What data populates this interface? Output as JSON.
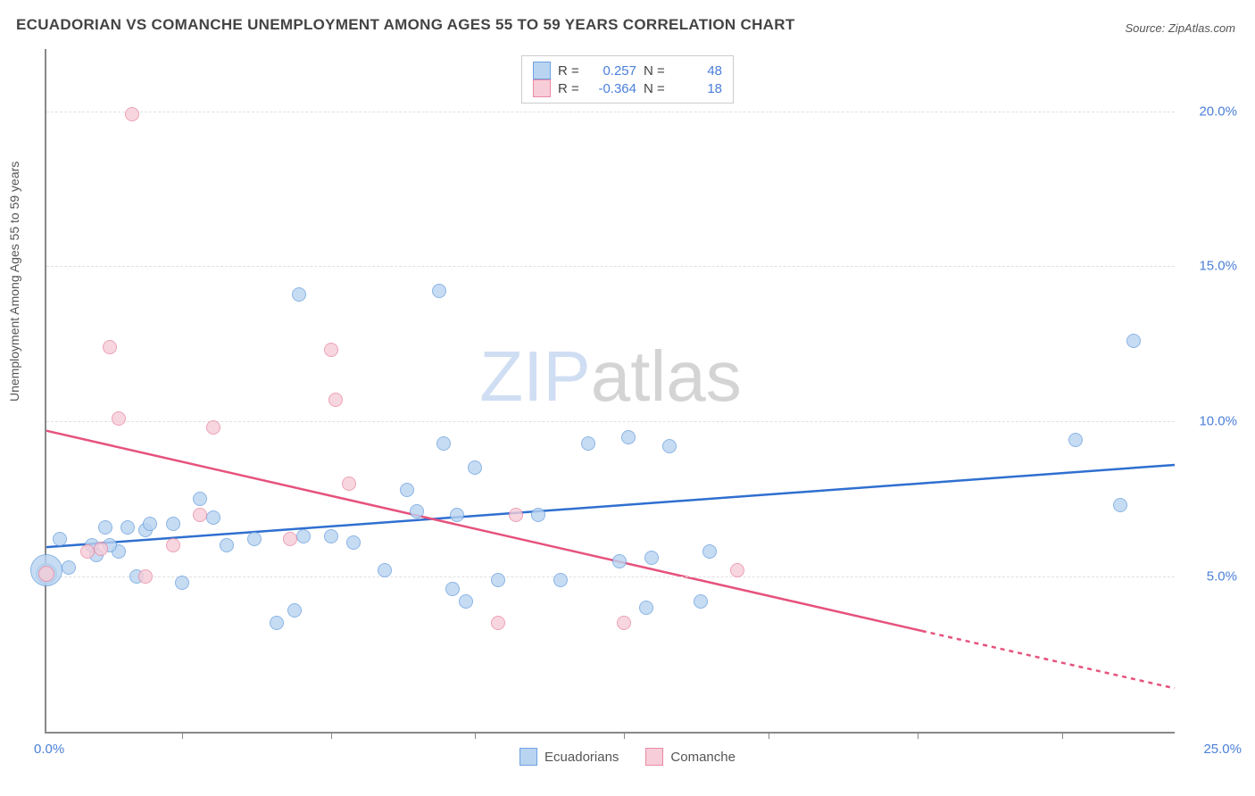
{
  "title": "ECUADORIAN VS COMANCHE UNEMPLOYMENT AMONG AGES 55 TO 59 YEARS CORRELATION CHART",
  "source": "Source: ZipAtlas.com",
  "ylabel": "Unemployment Among Ages 55 to 59 years",
  "watermark": {
    "zip": "ZIP",
    "atlas": "atlas"
  },
  "chart": {
    "type": "scatter",
    "xlim": [
      0,
      25
    ],
    "ylim": [
      0,
      22
    ],
    "xtick_positions": [
      3.0,
      6.3,
      9.5,
      12.8,
      16.0,
      19.3,
      22.5
    ],
    "x_origin_label": "0.0%",
    "x_end_label": "25.0%",
    "yticks": [
      {
        "v": 5.0,
        "label": "5.0%"
      },
      {
        "v": 10.0,
        "label": "10.0%"
      },
      {
        "v": 15.0,
        "label": "15.0%"
      },
      {
        "v": 20.0,
        "label": "20.0%"
      }
    ],
    "background_color": "#ffffff",
    "grid_color": "#e0e0e0",
    "axis_color": "#888888",
    "series": [
      {
        "name": "Ecuadorians",
        "fill": "#b9d4f1",
        "stroke": "#6ea2df",
        "line_color": "#2f6fd0",
        "R": "0.257",
        "N": "48",
        "trend": {
          "x1": 0,
          "y1": 5.95,
          "x2": 25,
          "y2": 8.6
        },
        "points": [
          {
            "x": 0.0,
            "y": 5.1,
            "r": 12
          },
          {
            "x": 0.0,
            "y": 5.2,
            "r": 18
          },
          {
            "x": 0.3,
            "y": 6.2,
            "r": 8
          },
          {
            "x": 0.5,
            "y": 5.3,
            "r": 8
          },
          {
            "x": 1.0,
            "y": 6.0,
            "r": 8
          },
          {
            "x": 1.1,
            "y": 5.7,
            "r": 8
          },
          {
            "x": 1.3,
            "y": 6.6,
            "r": 8
          },
          {
            "x": 1.6,
            "y": 5.8,
            "r": 8
          },
          {
            "x": 1.8,
            "y": 6.6,
            "r": 8
          },
          {
            "x": 2.0,
            "y": 5.0,
            "r": 8
          },
          {
            "x": 2.2,
            "y": 6.5,
            "r": 8
          },
          {
            "x": 2.3,
            "y": 6.7,
            "r": 8
          },
          {
            "x": 2.8,
            "y": 6.7,
            "r": 8
          },
          {
            "x": 3.0,
            "y": 4.8,
            "r": 8
          },
          {
            "x": 3.4,
            "y": 7.5,
            "r": 8
          },
          {
            "x": 3.7,
            "y": 6.9,
            "r": 8
          },
          {
            "x": 4.6,
            "y": 6.2,
            "r": 8
          },
          {
            "x": 5.1,
            "y": 3.5,
            "r": 8
          },
          {
            "x": 5.5,
            "y": 3.9,
            "r": 8
          },
          {
            "x": 5.6,
            "y": 14.1,
            "r": 8
          },
          {
            "x": 5.7,
            "y": 6.3,
            "r": 8
          },
          {
            "x": 6.3,
            "y": 6.3,
            "r": 8
          },
          {
            "x": 7.5,
            "y": 5.2,
            "r": 8
          },
          {
            "x": 8.0,
            "y": 7.8,
            "r": 8
          },
          {
            "x": 8.2,
            "y": 7.1,
            "r": 8
          },
          {
            "x": 8.7,
            "y": 14.2,
            "r": 8
          },
          {
            "x": 8.8,
            "y": 9.3,
            "r": 8
          },
          {
            "x": 9.0,
            "y": 4.6,
            "r": 8
          },
          {
            "x": 9.1,
            "y": 7.0,
            "r": 8
          },
          {
            "x": 9.3,
            "y": 4.2,
            "r": 8
          },
          {
            "x": 9.5,
            "y": 8.5,
            "r": 8
          },
          {
            "x": 10.0,
            "y": 4.9,
            "r": 8
          },
          {
            "x": 10.9,
            "y": 7.0,
            "r": 8
          },
          {
            "x": 11.4,
            "y": 4.9,
            "r": 8
          },
          {
            "x": 12.0,
            "y": 9.3,
            "r": 8
          },
          {
            "x": 12.7,
            "y": 5.5,
            "r": 8
          },
          {
            "x": 12.9,
            "y": 9.5,
            "r": 8
          },
          {
            "x": 13.3,
            "y": 4.0,
            "r": 8
          },
          {
            "x": 13.4,
            "y": 5.6,
            "r": 8
          },
          {
            "x": 14.5,
            "y": 4.2,
            "r": 8
          },
          {
            "x": 14.7,
            "y": 5.8,
            "r": 8
          },
          {
            "x": 13.8,
            "y": 9.2,
            "r": 8
          },
          {
            "x": 22.8,
            "y": 9.4,
            "r": 8
          },
          {
            "x": 23.8,
            "y": 7.3,
            "r": 8
          },
          {
            "x": 24.1,
            "y": 12.6,
            "r": 8
          },
          {
            "x": 4.0,
            "y": 6.0,
            "r": 8
          },
          {
            "x": 6.8,
            "y": 6.1,
            "r": 8
          },
          {
            "x": 1.4,
            "y": 6.0,
            "r": 8
          }
        ]
      },
      {
        "name": "Comanche",
        "fill": "#f6cdd8",
        "stroke": "#ea8aa5",
        "line_color": "#e6527c",
        "R": "-0.364",
        "N": "18",
        "trend_solid": {
          "x1": 0,
          "y1": 9.7,
          "x2": 19.4,
          "y2": 3.25
        },
        "trend_dash": {
          "x1": 19.4,
          "y1": 3.25,
          "x2": 25,
          "y2": 1.4
        },
        "points": [
          {
            "x": 0.0,
            "y": 5.1,
            "r": 9
          },
          {
            "x": 0.9,
            "y": 5.8,
            "r": 8
          },
          {
            "x": 1.2,
            "y": 5.9,
            "r": 8
          },
          {
            "x": 1.4,
            "y": 12.4,
            "r": 8
          },
          {
            "x": 1.6,
            "y": 10.1,
            "r": 8
          },
          {
            "x": 1.9,
            "y": 19.9,
            "r": 8
          },
          {
            "x": 2.2,
            "y": 5.0,
            "r": 8
          },
          {
            "x": 2.8,
            "y": 6.0,
            "r": 8
          },
          {
            "x": 3.4,
            "y": 7.0,
            "r": 8
          },
          {
            "x": 3.7,
            "y": 9.8,
            "r": 8
          },
          {
            "x": 5.4,
            "y": 6.2,
            "r": 8
          },
          {
            "x": 6.3,
            "y": 12.3,
            "r": 8
          },
          {
            "x": 6.4,
            "y": 10.7,
            "r": 8
          },
          {
            "x": 6.7,
            "y": 8.0,
            "r": 8
          },
          {
            "x": 10.0,
            "y": 3.5,
            "r": 8
          },
          {
            "x": 10.4,
            "y": 7.0,
            "r": 8
          },
          {
            "x": 12.8,
            "y": 3.5,
            "r": 8
          },
          {
            "x": 15.3,
            "y": 5.2,
            "r": 8
          }
        ]
      }
    ]
  },
  "legend_bottom": [
    {
      "label": "Ecuadorians",
      "fill": "#b9d4f1",
      "stroke": "#6ea2df"
    },
    {
      "label": "Comanche",
      "fill": "#f6cdd8",
      "stroke": "#ea8aa5"
    }
  ]
}
